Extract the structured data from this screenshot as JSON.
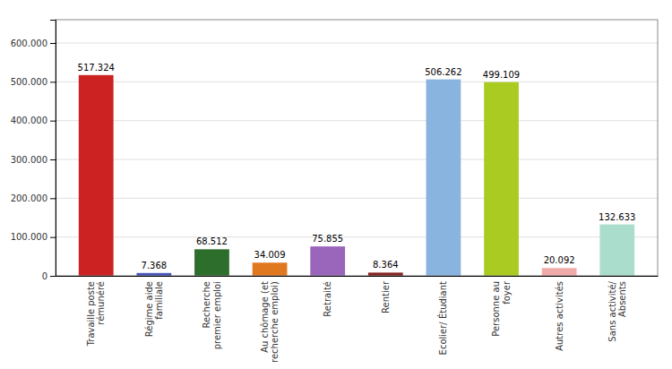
{
  "chart_data": {
    "type": "bar",
    "categories": [
      "Travaille poste\nrémunéré",
      "Régime aide\nfamiliale",
      "Recherche\npremier emploi",
      "Au chômage (et\nrecherche emploi)",
      "Retraité",
      "Rentier",
      "Ecolier/ Étudiant",
      "Personne au\nfoyer",
      "Autres activités",
      "Sans activité/\nAbsents"
    ],
    "values": [
      517324,
      7368,
      68512,
      34009,
      75855,
      8364,
      506262,
      499109,
      20092,
      132633
    ],
    "value_labels": [
      "517.324",
      "7.368",
      "68.512",
      "34.009",
      "75.855",
      "8.364",
      "506.262",
      "499.109",
      "20.092",
      "132.633"
    ],
    "data_labels": true,
    "colors": [
      "#cc2222",
      "#4455bb",
      "#2d6e2d",
      "#e07820",
      "#9966bb",
      "#882222",
      "#8ab4e0",
      "#aacc22",
      "#f0aaaa",
      "#aaddcc"
    ],
    "ylim": [
      0,
      660000
    ],
    "yticks": [
      0,
      {
        "value": 100000,
        "label": "100.000"
      },
      {
        "value": 200000,
        "label": "200.000"
      },
      {
        "value": 300000,
        "label": "300.000"
      },
      {
        "value": 400000,
        "label": "400.000"
      },
      {
        "value": 500000,
        "label": "500.000"
      },
      {
        "value": 600000,
        "label": "600.000"
      }
    ],
    "grid": true
  }
}
